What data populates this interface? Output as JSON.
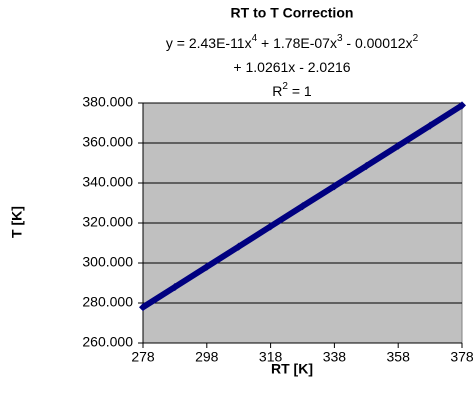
{
  "chart_data": {
    "type": "scatter",
    "title": "RT to T Correction",
    "annotations": [
      [
        {
          "text": "y = 2.43E-11x"
        },
        {
          "text": "4",
          "sup": true
        },
        {
          "text": " + 1.78E-07x"
        },
        {
          "text": "3",
          "sup": true
        },
        {
          "text": " - 0.00012x"
        },
        {
          "text": "2",
          "sup": true
        }
      ],
      [
        {
          "text": "+ 1.0261x - 2.0216"
        }
      ],
      [
        {
          "text": "R"
        },
        {
          "text": "2",
          "sup": true
        },
        {
          "text": " = 1"
        }
      ]
    ],
    "x_label": "RT [K]",
    "y_label": "T [K]",
    "x": [
      278,
      288,
      298,
      308,
      318,
      328,
      338,
      348,
      358,
      368,
      378
    ],
    "series": [
      {
        "color": "#000080",
        "values": [
          277.9,
          288.0,
          298.1,
          308.2,
          318.3,
          328.4,
          338.4,
          348.5,
          358.6,
          368.7,
          378.8
        ]
      }
    ],
    "xlim": [
      278,
      378
    ],
    "xticks": [
      278,
      298,
      318,
      338,
      358,
      378
    ],
    "ylim": [
      260,
      380
    ],
    "yticks": [
      {
        "value": 260,
        "label": "260.000"
      },
      {
        "value": 280,
        "label": "280.000"
      },
      {
        "value": 300,
        "label": "300.000"
      },
      {
        "value": 320,
        "label": "320.000"
      },
      {
        "value": 340,
        "label": "340.000"
      },
      {
        "value": 360,
        "label": "360.000"
      },
      {
        "value": 380,
        "label": "380.000"
      }
    ],
    "grid": true,
    "plot_background": "#c0c0c0"
  }
}
